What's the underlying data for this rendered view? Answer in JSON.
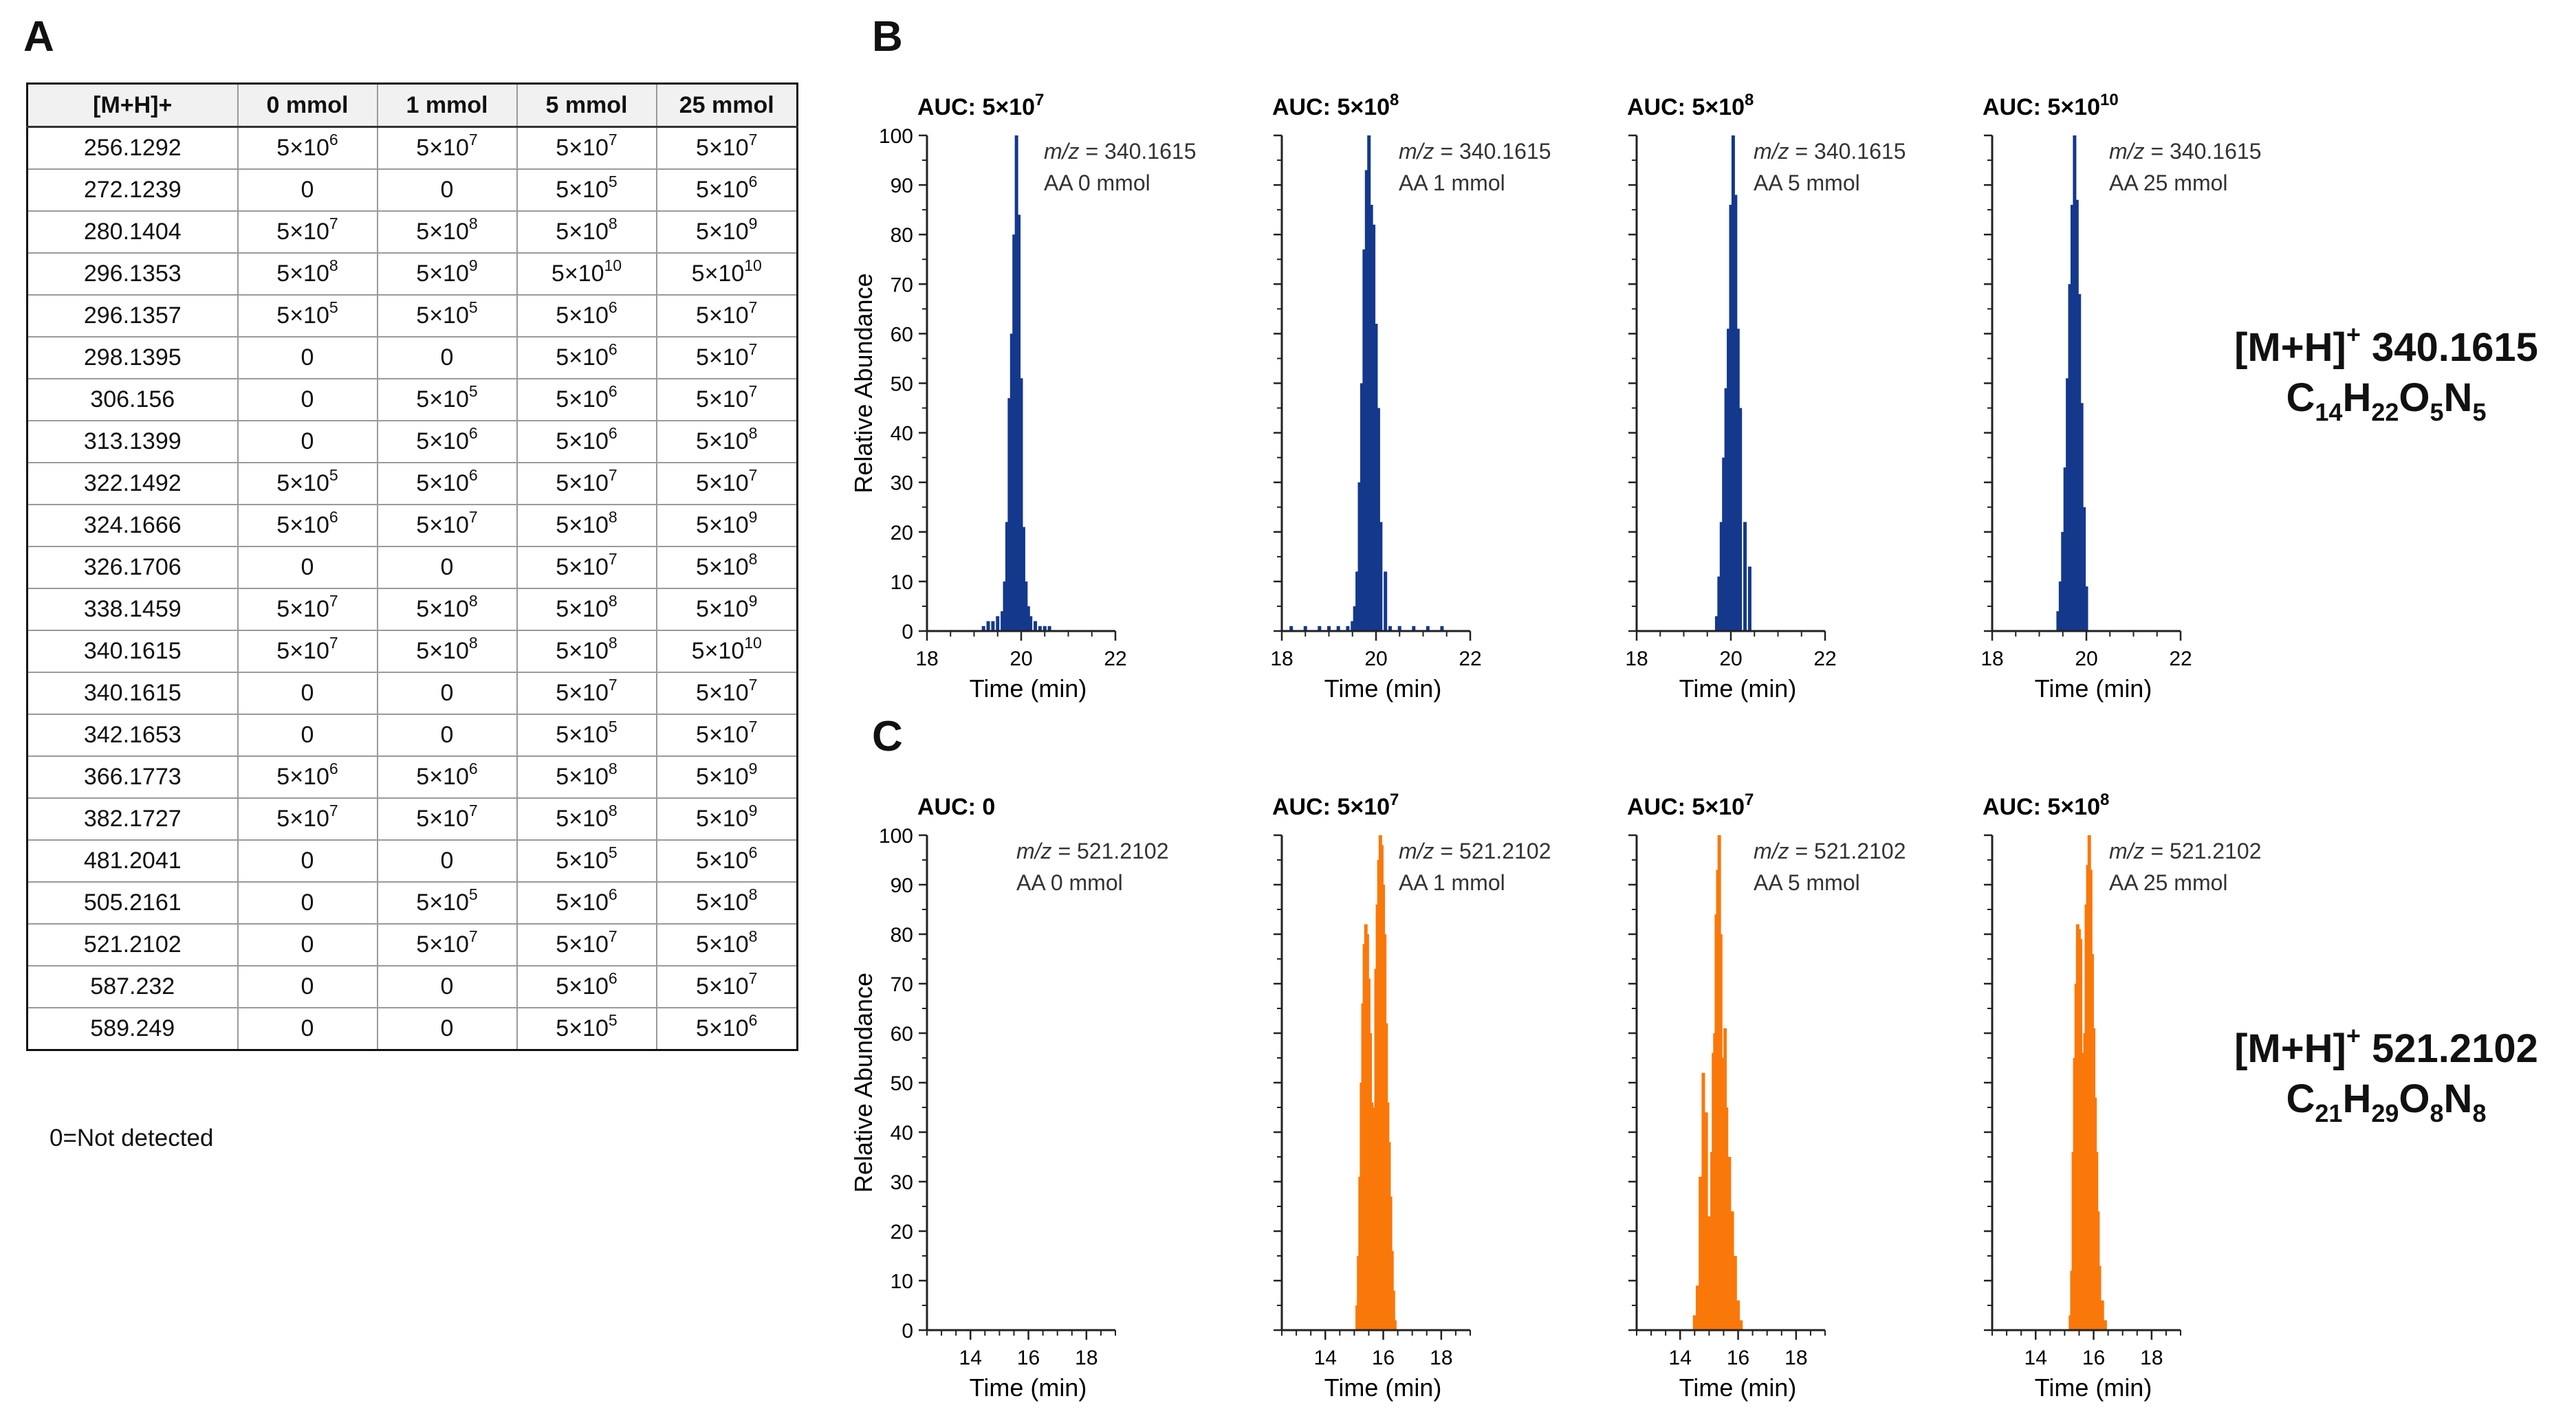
{
  "panels": {
    "a": "A",
    "b": "B",
    "c": "C"
  },
  "table": {
    "headers": [
      "[M+H]+",
      "0 mmol",
      "1 mmol",
      "5 mmol",
      "25 mmol"
    ],
    "rows": [
      [
        "256.1292",
        "5×10^6",
        "5×10^7",
        "5×10^7",
        "5×10^7"
      ],
      [
        "272.1239",
        "0",
        "0",
        "5×10^5",
        "5×10^6"
      ],
      [
        "280.1404",
        "5×10^7",
        "5×10^8",
        "5×10^8",
        "5×10^9"
      ],
      [
        "296.1353",
        "5×10^8",
        "5×10^9",
        "5×10^10",
        "5×10^10"
      ],
      [
        "296.1357",
        "5×10^5",
        "5×10^5",
        "5×10^6",
        "5×10^7"
      ],
      [
        "298.1395",
        "0",
        "0",
        "5×10^6",
        "5×10^7"
      ],
      [
        "306.156",
        "0",
        "5×10^5",
        "5×10^6",
        "5×10^7"
      ],
      [
        "313.1399",
        "0",
        "5×10^6",
        "5×10^6",
        "5×10^8"
      ],
      [
        "322.1492",
        "5×10^5",
        "5×10^6",
        "5×10^7",
        "5×10^7"
      ],
      [
        "324.1666",
        "5×10^6",
        "5×10^7",
        "5×10^8",
        "5×10^9"
      ],
      [
        "326.1706",
        "0",
        "0",
        "5×10^7",
        "5×10^8"
      ],
      [
        "338.1459",
        "5×10^7",
        "5×10^8",
        "5×10^8",
        "5×10^9"
      ],
      [
        "340.1615",
        "5×10^7",
        "5×10^8",
        "5×10^8",
        "5×10^10"
      ],
      [
        "340.1615",
        "0",
        "0",
        "5×10^7",
        "5×10^7"
      ],
      [
        "342.1653",
        "0",
        "0",
        "5×10^5",
        "5×10^7"
      ],
      [
        "366.1773",
        "5×10^6",
        "5×10^6",
        "5×10^8",
        "5×10^9"
      ],
      [
        "382.1727",
        "5×10^7",
        "5×10^7",
        "5×10^8",
        "5×10^9"
      ],
      [
        "481.2041",
        "0",
        "0",
        "5×10^5",
        "5×10^6"
      ],
      [
        "505.2161",
        "0",
        "5×10^5",
        "5×10^6",
        "5×10^8"
      ],
      [
        "521.2102",
        "0",
        "5×10^7",
        "5×10^7",
        "5×10^8"
      ],
      [
        "587.232",
        "0",
        "0",
        "5×10^6",
        "5×10^7"
      ],
      [
        "589.249",
        "0",
        "0",
        "5×10^5",
        "5×10^6"
      ]
    ],
    "footnote": "0=Not detected"
  },
  "formulas": [
    {
      "ion": "[M+H]",
      "charge": "+",
      "mass": "340.1615",
      "formula": [
        [
          "C",
          "14"
        ],
        [
          "H",
          "22"
        ],
        [
          "O",
          "5"
        ],
        [
          "N",
          "5"
        ]
      ]
    },
    {
      "ion": "[M+H]",
      "charge": "+",
      "mass": "521.2102",
      "formula": [
        [
          "C",
          "21"
        ],
        [
          "H",
          "29"
        ],
        [
          "O",
          "8"
        ],
        [
          "N",
          "8"
        ]
      ]
    }
  ],
  "chart_data": [
    {
      "type": "bar",
      "panel": "B",
      "title": "AUC: 5×10^7",
      "mz": "340.1615",
      "condition": "AA 0 mmol",
      "color": "#14388c",
      "xlabel": "Time (min)",
      "ylabel": "Relative Abundance",
      "xlim": [
        18,
        22
      ],
      "xticks": [
        18,
        20,
        22
      ],
      "ylim": [
        0,
        100
      ],
      "yticks": [
        0,
        10,
        20,
        30,
        40,
        50,
        60,
        70,
        80,
        90,
        100
      ],
      "x": [
        19.2,
        19.3,
        19.4,
        19.5,
        19.6,
        19.65,
        19.7,
        19.75,
        19.8,
        19.85,
        19.9,
        19.95,
        20.0,
        20.05,
        20.1,
        20.15,
        20.2,
        20.3,
        20.4,
        20.5,
        20.6
      ],
      "y": [
        1,
        2,
        2,
        3,
        4,
        10,
        22,
        47,
        60,
        80,
        100,
        84,
        51,
        21,
        10,
        5,
        3,
        2,
        1,
        1,
        1
      ]
    },
    {
      "type": "bar",
      "panel": "B",
      "title": "AUC: 5×10^8",
      "mz": "340.1615",
      "condition": "AA 1 mmol",
      "color": "#14388c",
      "xlabel": "Time (min)",
      "ylabel": "",
      "xlim": [
        18,
        22
      ],
      "xticks": [
        18,
        20,
        22
      ],
      "ylim": [
        0,
        100
      ],
      "yticks": [
        0,
        10,
        20,
        30,
        40,
        50,
        60,
        70,
        80,
        90,
        100
      ],
      "x": [
        18.2,
        18.5,
        18.8,
        19.0,
        19.2,
        19.4,
        19.5,
        19.55,
        19.6,
        19.65,
        19.7,
        19.75,
        19.8,
        19.85,
        19.9,
        19.95,
        20.0,
        20.05,
        20.1,
        20.2,
        20.3,
        20.5,
        20.8,
        21.1,
        21.4
      ],
      "y": [
        1,
        1,
        1,
        1,
        1,
        1,
        2,
        5,
        12,
        30,
        50,
        77,
        93,
        100,
        86,
        82,
        62,
        45,
        22,
        12,
        1,
        1,
        1,
        1,
        1
      ]
    },
    {
      "type": "bar",
      "panel": "B",
      "title": "AUC: 5×10^8",
      "mz": "340.1615",
      "condition": "AA 5 mmol",
      "color": "#14388c",
      "xlabel": "Time (min)",
      "ylabel": "",
      "xlim": [
        18,
        22
      ],
      "xticks": [
        18,
        20,
        22
      ],
      "ylim": [
        0,
        100
      ],
      "yticks": [
        0,
        10,
        20,
        30,
        40,
        50,
        60,
        70,
        80,
        90,
        100
      ],
      "x": [
        19.7,
        19.75,
        19.8,
        19.85,
        19.9,
        19.95,
        20.0,
        20.05,
        20.1,
        20.15,
        20.2,
        20.3,
        20.4
      ],
      "y": [
        3,
        11,
        22,
        35,
        49,
        61,
        86,
        100,
        88,
        61,
        45,
        22,
        13
      ]
    },
    {
      "type": "bar",
      "panel": "B",
      "title": "AUC: 5×10^10",
      "mz": "340.1615",
      "condition": "AA 25 mmol",
      "color": "#14388c",
      "xlabel": "Time (min)",
      "ylabel": "",
      "xlim": [
        18,
        22
      ],
      "xticks": [
        18,
        20,
        22
      ],
      "ylim": [
        0,
        100
      ],
      "yticks": [
        0,
        10,
        20,
        30,
        40,
        50,
        60,
        70,
        80,
        90,
        100
      ],
      "x": [
        19.4,
        19.45,
        19.5,
        19.55,
        19.6,
        19.65,
        19.7,
        19.75,
        19.8,
        19.85,
        19.9,
        19.95,
        20.0
      ],
      "y": [
        4,
        10,
        20,
        33,
        51,
        70,
        86,
        100,
        87,
        68,
        46,
        25,
        9
      ]
    },
    {
      "type": "bar",
      "panel": "C",
      "title": "AUC: 0",
      "mz": "521.2102",
      "condition": "AA 0 mmol",
      "color": "#fa780a",
      "xlabel": "Time (min)",
      "ylabel": "Relative Abundance",
      "xlim": [
        12.5,
        19
      ],
      "xticks": [
        14,
        16,
        18
      ],
      "ylim": [
        0,
        100
      ],
      "yticks": [
        0,
        10,
        20,
        30,
        40,
        50,
        60,
        70,
        80,
        90,
        100
      ],
      "x": [],
      "y": []
    },
    {
      "type": "bar",
      "panel": "C",
      "title": "AUC: 5×10^7",
      "mz": "521.2102",
      "condition": "AA 1 mmol",
      "color": "#fa780a",
      "xlabel": "Time (min)",
      "ylabel": "",
      "xlim": [
        12.5,
        19
      ],
      "xticks": [
        14,
        16,
        18
      ],
      "ylim": [
        0,
        100
      ],
      "yticks": [
        0,
        10,
        20,
        30,
        40,
        50,
        60,
        70,
        80,
        90,
        100
      ],
      "x": [
        15.1,
        15.15,
        15.2,
        15.25,
        15.3,
        15.35,
        15.4,
        15.45,
        15.5,
        15.55,
        15.6,
        15.65,
        15.7,
        15.75,
        15.8,
        15.85,
        15.9,
        15.95,
        16.0,
        16.05,
        16.1,
        16.15,
        16.2,
        16.25,
        16.3,
        16.35,
        16.4
      ],
      "y": [
        5,
        15,
        31,
        50,
        66,
        78,
        82,
        80,
        71,
        60,
        46,
        34,
        45,
        73,
        86,
        95,
        100,
        98,
        90,
        80,
        62,
        46,
        38,
        27,
        16,
        8,
        2
      ]
    },
    {
      "type": "bar",
      "panel": "C",
      "title": "AUC: 5×10^7",
      "mz": "521.2102",
      "condition": "AA 5 mmol",
      "color": "#fa780a",
      "xlabel": "Time (min)",
      "ylabel": "",
      "xlim": [
        12.5,
        19
      ],
      "xticks": [
        14,
        16,
        18
      ],
      "ylim": [
        0,
        100
      ],
      "yticks": [
        0,
        10,
        20,
        30,
        40,
        50,
        60,
        70,
        80,
        90,
        100
      ],
      "x": [
        14.5,
        14.6,
        14.7,
        14.8,
        14.9,
        15.0,
        15.1,
        15.15,
        15.2,
        15.25,
        15.3,
        15.35,
        15.4,
        15.45,
        15.5,
        15.55,
        15.6,
        15.7,
        15.8,
        15.9,
        16.0,
        16.1
      ],
      "y": [
        3,
        9,
        31,
        52,
        44,
        23,
        36,
        56,
        60,
        84,
        93,
        100,
        80,
        50,
        55,
        61,
        45,
        35,
        24,
        15,
        6,
        2
      ]
    },
    {
      "type": "bar",
      "panel": "C",
      "title": "AUC: 5×10^8",
      "mz": "521.2102",
      "condition": "AA 25 mmol",
      "color": "#fa780a",
      "xlabel": "Time (min)",
      "ylabel": "",
      "xlim": [
        12.5,
        19
      ],
      "xticks": [
        14,
        16,
        18
      ],
      "ylim": [
        0,
        100
      ],
      "yticks": [
        0,
        10,
        20,
        30,
        40,
        50,
        60,
        70,
        80,
        90,
        100
      ],
      "x": [
        15.2,
        15.25,
        15.3,
        15.35,
        15.4,
        15.45,
        15.5,
        15.55,
        15.6,
        15.65,
        15.7,
        15.75,
        15.8,
        15.85,
        15.9,
        15.95,
        16.0,
        16.05,
        16.1,
        16.15,
        16.2,
        16.3,
        16.4
      ],
      "y": [
        3,
        12,
        36,
        55,
        70,
        82,
        81,
        79,
        56,
        38,
        60,
        86,
        94,
        100,
        93,
        76,
        61,
        47,
        36,
        24,
        13,
        6,
        2
      ]
    }
  ]
}
